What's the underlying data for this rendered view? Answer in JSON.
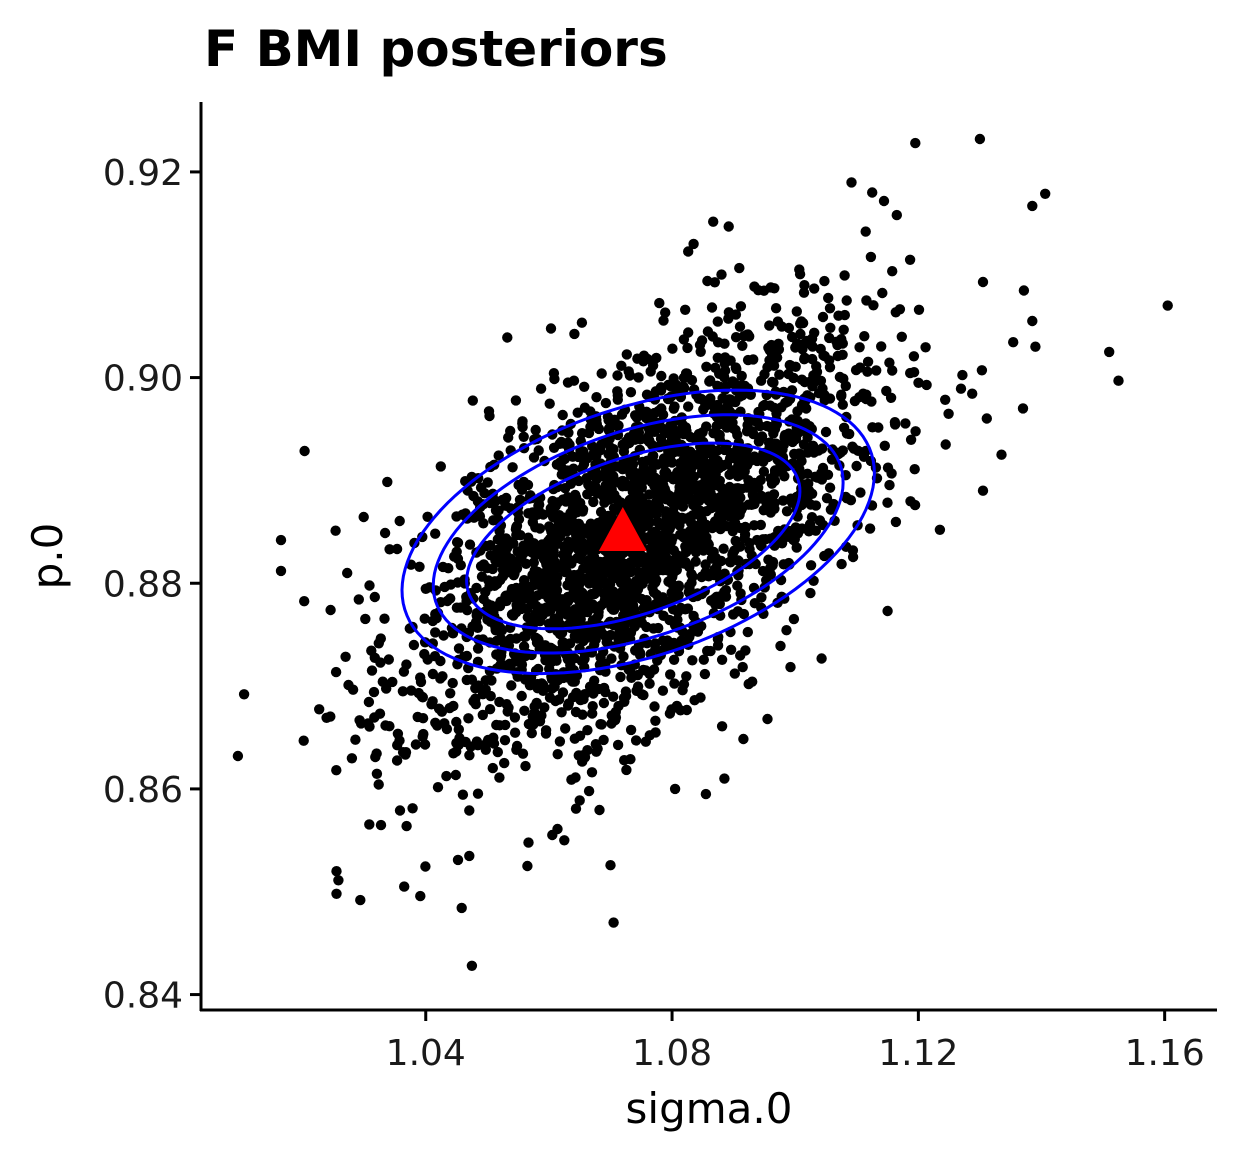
{
  "chart_data": {
    "type": "scatter",
    "title": "F BMI posteriors",
    "xlabel": "sigma.0",
    "ylabel": "p.0",
    "xlim": [
      1.0035,
      1.1685
    ],
    "ylim": [
      0.8385,
      0.9268
    ],
    "xticks": [
      1.04,
      1.08,
      1.12,
      1.16
    ],
    "yticks": [
      0.84,
      0.86,
      0.88,
      0.9,
      0.92
    ],
    "xtick_labels": [
      "1.04",
      "1.08",
      "1.12",
      "1.16"
    ],
    "ytick_labels": [
      "0.84",
      "0.86",
      "0.88",
      "0.90",
      "0.92"
    ],
    "grid": false,
    "legend": "none",
    "colors": {
      "points": "#000000",
      "ellipses": "#0000ff",
      "center": "#ff0000"
    },
    "center": {
      "x": 1.072,
      "y": 0.8845,
      "marker": "triangle"
    },
    "scatter_generation": {
      "n": 2600,
      "mean_x": 1.075,
      "mean_y": 0.8848,
      "sd_x": 0.0185,
      "sd_y": 0.0106,
      "corr": 0.6
    },
    "ellipses": [
      {
        "level": "inner",
        "cx": 1.0737,
        "cy": 0.8846,
        "rx": 0.0325,
        "ry": 0.009,
        "angle_deg": 34
      },
      {
        "level": "middle",
        "cx": 1.0745,
        "cy": 0.8848,
        "rx": 0.0395,
        "ry": 0.0118,
        "angle_deg": 33
      },
      {
        "level": "outer",
        "cx": 1.0745,
        "cy": 0.885,
        "rx": 0.0455,
        "ry": 0.0142,
        "angle_deg": 33
      }
    ],
    "outliers": [
      [
        1.1605,
        0.907
      ],
      [
        1.13,
        0.9232
      ],
      [
        1.1195,
        0.9228
      ],
      [
        1.1385,
        0.9167
      ],
      [
        1.1525,
        0.8997
      ],
      [
        1.151,
        0.9025
      ],
      [
        1.1385,
        0.9055
      ],
      [
        1.139,
        0.903
      ],
      [
        1.1305,
        0.9093
      ],
      [
        1.1335,
        0.8925
      ],
      [
        1.1305,
        0.889
      ],
      [
        1.137,
        0.897
      ],
      [
        1.0475,
        0.8428
      ],
      [
        1.0255,
        0.8498
      ],
      [
        1.0365,
        0.8505
      ],
      [
        1.0255,
        0.852
      ],
      [
        1.0095,
        0.8632
      ],
      [
        1.0105,
        0.8692
      ],
      [
        1.0165,
        0.8842
      ],
      [
        1.0165,
        0.8812
      ],
      [
        1.0885,
        0.861
      ],
      [
        1.0855,
        0.8595
      ],
      [
        1.0955,
        0.8668
      ],
      [
        1.1235,
        0.8852
      ],
      [
        1.0625,
        0.855
      ],
      [
        1.0565,
        0.8525
      ],
      [
        1.0805,
        0.86
      ],
      [
        1.1165,
        0.9158
      ],
      [
        1.1125,
        0.918
      ],
      [
        1.0835,
        0.913
      ],
      [
        1.0705,
        0.847
      ]
    ]
  }
}
